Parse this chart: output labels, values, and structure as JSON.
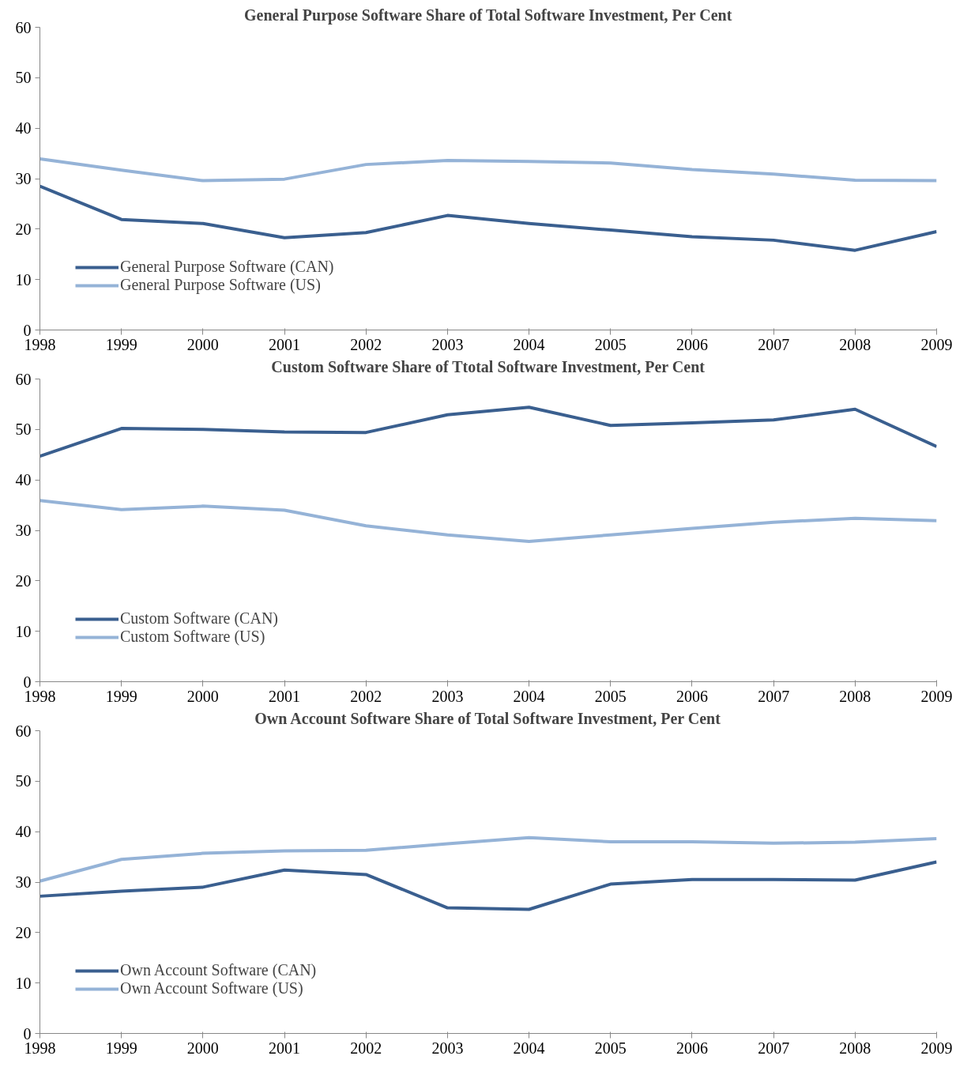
{
  "chart_data": [
    {
      "type": "line",
      "title": "General Purpose Software Share of Total Software Investment, Per Cent",
      "x": [
        1998,
        1999,
        2000,
        2001,
        2002,
        2003,
        2004,
        2005,
        2006,
        2007,
        2008,
        2009
      ],
      "xlim": [
        1998,
        2009
      ],
      "xticks": [
        1998,
        1999,
        2000,
        2001,
        2002,
        2003,
        2004,
        2005,
        2006,
        2007,
        2008,
        2009
      ],
      "ylim": [
        0,
        60
      ],
      "yticks": [
        0,
        10,
        20,
        30,
        40,
        50,
        60
      ],
      "grid": false,
      "legend": "bottom left",
      "series": [
        {
          "name": "General Purpose Software (CAN)",
          "color": "#3a5f8f",
          "values": [
            28.5,
            21.9,
            21.1,
            18.3,
            19.3,
            22.7,
            21.1,
            19.8,
            18.5,
            17.8,
            15.8,
            19.5
          ]
        },
        {
          "name": "General Purpose Software (US)",
          "color": "#95b3d7",
          "values": [
            33.9,
            31.7,
            29.6,
            29.9,
            32.8,
            33.6,
            33.4,
            33.1,
            31.8,
            30.9,
            29.7,
            29.6
          ]
        }
      ]
    },
    {
      "type": "line",
      "title": "Custom Software Share of Ttotal Software Investment, Per Cent",
      "x": [
        1998,
        1999,
        2000,
        2001,
        2002,
        2003,
        2004,
        2005,
        2006,
        2007,
        2008,
        2009
      ],
      "xlim": [
        1998,
        2009
      ],
      "xticks": [
        1998,
        1999,
        2000,
        2001,
        2002,
        2003,
        2004,
        2005,
        2006,
        2007,
        2008,
        2009
      ],
      "ylim": [
        0,
        60
      ],
      "yticks": [
        0,
        10,
        20,
        30,
        40,
        50,
        60
      ],
      "grid": false,
      "legend": "bottom left",
      "series": [
        {
          "name": "Custom Software (CAN)",
          "color": "#3a5f8f",
          "values": [
            44.7,
            50.2,
            50.0,
            49.5,
            49.4,
            52.9,
            54.4,
            50.8,
            51.3,
            51.9,
            54.0,
            46.6
          ]
        },
        {
          "name": "Custom Software (US)",
          "color": "#95b3d7",
          "values": [
            35.9,
            34.1,
            34.8,
            34.0,
            30.9,
            29.1,
            27.8,
            29.1,
            30.4,
            31.6,
            32.4,
            31.9
          ]
        }
      ]
    },
    {
      "type": "line",
      "title": "Own Account Software Share of Total Software Investment, Per Cent",
      "x": [
        1998,
        1999,
        2000,
        2001,
        2002,
        2003,
        2004,
        2005,
        2006,
        2007,
        2008,
        2009
      ],
      "xlim": [
        1998,
        2009
      ],
      "xticks": [
        1998,
        1999,
        2000,
        2001,
        2002,
        2003,
        2004,
        2005,
        2006,
        2007,
        2008,
        2009
      ],
      "ylim": [
        0,
        60
      ],
      "yticks": [
        0,
        10,
        20,
        30,
        40,
        50,
        60
      ],
      "grid": false,
      "legend": "bottom left",
      "series": [
        {
          "name": "Own Account Software (CAN)",
          "color": "#3a5f8f",
          "values": [
            27.2,
            28.2,
            29.0,
            32.4,
            31.5,
            24.9,
            24.6,
            29.6,
            30.5,
            30.5,
            30.4,
            34.0
          ]
        },
        {
          "name": "Own Account Software (US)",
          "color": "#95b3d7",
          "values": [
            30.2,
            34.5,
            35.7,
            36.2,
            36.3,
            37.6,
            38.8,
            38.0,
            38.0,
            37.7,
            37.9,
            38.6
          ]
        }
      ]
    }
  ]
}
